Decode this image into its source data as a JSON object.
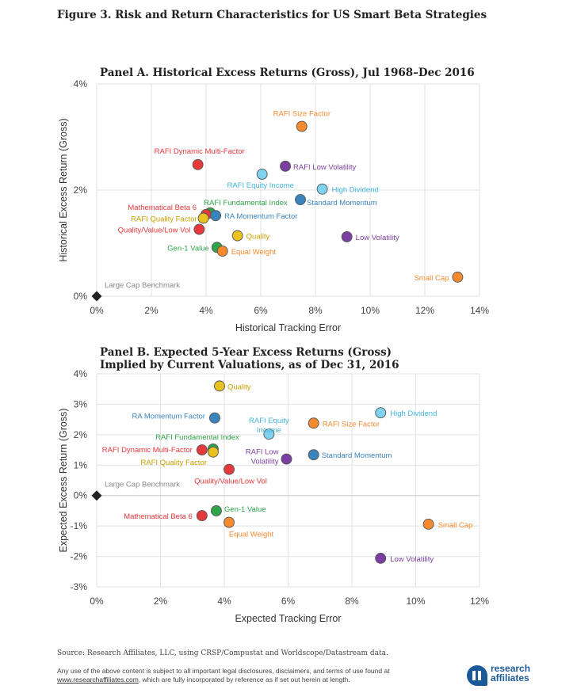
{
  "figure_title": "Figure 3. Risk and Return Characteristics for US Smart Beta Strategies",
  "source": "Source: Research Affiliates, LLC, using CRSP/Compustat and Worldscope/Datastream data.",
  "disclaimer_line1": "Any use of the above content is subject to all important legal disclosures, disclaimers, and terms of use found at",
  "disclaimer_link": "www.researchaffiliates.com",
  "disclaimer_line2": ", which are fully incorporated by reference as if set out herein at length.",
  "logo": {
    "line1": "research",
    "line2": "affiliates",
    "color": "#1b5a99"
  },
  "chart_data": [
    {
      "type": "scatter",
      "title": "Panel A. Historical Excess Returns (Gross), Jul 1968–Dec 2016",
      "xlabel": "Historical Tracking Error",
      "ylabel": "Historical Excess Return (Gross)",
      "xlim": [
        0,
        14
      ],
      "ylim": [
        0,
        4
      ],
      "xticks": [
        "0%",
        "2%",
        "4%",
        "6%",
        "8%",
        "10%",
        "12%",
        "14%"
      ],
      "yticks": [
        "0%",
        "2%",
        "4%"
      ],
      "grid": true,
      "points": [
        {
          "label": "Large Cap Benchmark",
          "x": 0.0,
          "y": 0.0,
          "color": "#222222",
          "marker": "diamond"
        },
        {
          "label": "RAFI Size Factor",
          "x": 7.5,
          "y": 3.2,
          "color": "#f58a2f"
        },
        {
          "label": "RAFI Dynamic Multi-Factor",
          "x": 3.7,
          "y": 2.48,
          "color": "#e5393b"
        },
        {
          "label": "RAFI Low Volatility",
          "x": 6.9,
          "y": 2.45,
          "color": "#7b3fa1"
        },
        {
          "label": "RAFI Equity Income",
          "x": 6.05,
          "y": 2.3,
          "color": "#7fd3ef"
        },
        {
          "label": "High Dividend",
          "x": 8.25,
          "y": 2.02,
          "color": "#7fd3ef"
        },
        {
          "label": "Standard Momentum",
          "x": 7.45,
          "y": 1.82,
          "color": "#3a84bd"
        },
        {
          "label": "RAFI Fundamental Index",
          "x": 4.15,
          "y": 1.57,
          "color": "#2fa44a"
        },
        {
          "label": "Mathematical Beta 6",
          "x": 4.0,
          "y": 1.54,
          "color": "#e5393b"
        },
        {
          "label": "RA Momentum Factor",
          "x": 4.35,
          "y": 1.52,
          "color": "#3a84bd"
        },
        {
          "label": "RAFI Quality Factor",
          "x": 3.9,
          "y": 1.47,
          "color": "#e9c21f"
        },
        {
          "label": "Quality/Value/Low Vol",
          "x": 3.75,
          "y": 1.26,
          "color": "#e5393b"
        },
        {
          "label": "Quality",
          "x": 5.15,
          "y": 1.14,
          "color": "#e9c21f"
        },
        {
          "label": "Low Volatility",
          "x": 9.15,
          "y": 1.12,
          "color": "#7b3fa1"
        },
        {
          "label": "Gen-1 Value",
          "x": 4.4,
          "y": 0.92,
          "color": "#2fa44a"
        },
        {
          "label": "Equal Weight",
          "x": 4.6,
          "y": 0.85,
          "color": "#f58a2f"
        },
        {
          "label": "Small Cap",
          "x": 13.2,
          "y": 0.36,
          "color": "#f58a2f"
        }
      ]
    },
    {
      "type": "scatter",
      "title": "Panel B. Expected 5-Year Excess Returns (Gross)",
      "subtitle": "Implied by Current Valuations, as of Dec 31, 2016",
      "xlabel": "Expected Tracking Error",
      "ylabel": "Expected Excess Return (Gross)",
      "xlim": [
        0,
        12
      ],
      "ylim": [
        -3,
        4
      ],
      "xticks": [
        "0%",
        "2%",
        "4%",
        "6%",
        "8%",
        "10%",
        "12%"
      ],
      "yticks": [
        "-3%",
        "-2%",
        "-1%",
        "0%",
        "1%",
        "2%",
        "3%",
        "4%"
      ],
      "grid": true,
      "points": [
        {
          "label": "Large Cap Benchmark",
          "x": 0.0,
          "y": 0.0,
          "color": "#222222",
          "marker": "diamond"
        },
        {
          "label": "Quality",
          "x": 3.85,
          "y": 3.6,
          "color": "#e9c21f"
        },
        {
          "label": "RA Momentum Factor",
          "x": 3.7,
          "y": 2.55,
          "color": "#3a84bd"
        },
        {
          "label": "High Dividend",
          "x": 8.9,
          "y": 2.72,
          "color": "#7fd3ef"
        },
        {
          "label": "RAFI Size Factor",
          "x": 6.8,
          "y": 2.38,
          "color": "#f58a2f"
        },
        {
          "label": "RAFI Equity Income",
          "x": 5.4,
          "y": 2.02,
          "color": "#7fd3ef"
        },
        {
          "label": "RAFI Fundamental Index",
          "x": 3.65,
          "y": 1.53,
          "color": "#2fa44a"
        },
        {
          "label": "RAFI Dynamic Multi-Factor",
          "x": 3.3,
          "y": 1.5,
          "color": "#e5393b"
        },
        {
          "label": "RAFI Quality Factor",
          "x": 3.65,
          "y": 1.43,
          "color": "#e9c21f"
        },
        {
          "label": "Standard Momentum",
          "x": 6.8,
          "y": 1.34,
          "color": "#3a84bd"
        },
        {
          "label": "RAFI Low Volatility",
          "x": 5.95,
          "y": 1.2,
          "color": "#7b3fa1"
        },
        {
          "label": "Quality/Value/Low Vol",
          "x": 4.15,
          "y": 0.86,
          "color": "#e5393b"
        },
        {
          "label": "Gen-1 Value",
          "x": 3.75,
          "y": -0.5,
          "color": "#2fa44a"
        },
        {
          "label": "Mathematical Beta 6",
          "x": 3.3,
          "y": -0.66,
          "color": "#e5393b"
        },
        {
          "label": "Equal Weight",
          "x": 4.15,
          "y": -0.88,
          "color": "#f58a2f"
        },
        {
          "label": "Small Cap",
          "x": 10.4,
          "y": -0.94,
          "color": "#f58a2f"
        },
        {
          "label": "Low Volatility",
          "x": 8.9,
          "y": -2.06,
          "color": "#7b3fa1"
        }
      ]
    }
  ]
}
